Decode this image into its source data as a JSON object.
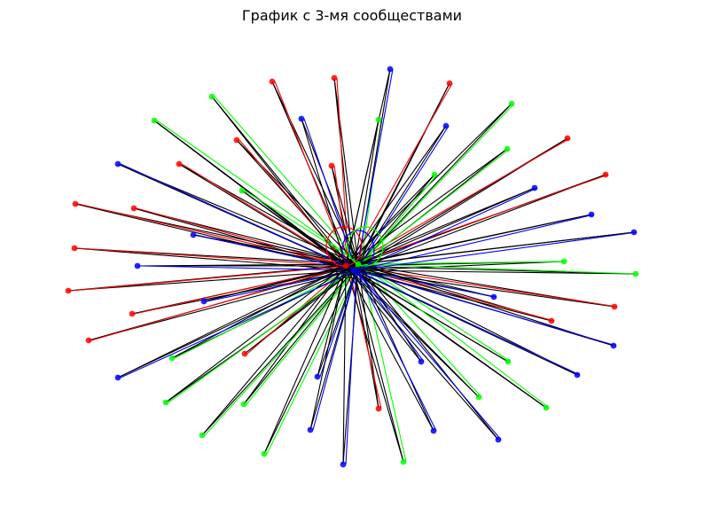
{
  "title": "График с 3-мя сообществами",
  "colors": {
    "red": "#ff0000",
    "green": "#00ff00",
    "blue": "#0000ff",
    "black_edge": "#000000"
  },
  "graph": {
    "type": "network",
    "communities": 3,
    "hub_nodes": [
      "red",
      "green",
      "blue"
    ],
    "peripheral_nodes": [
      {
        "community": "red"
      },
      {
        "community": "red"
      },
      {
        "community": "red"
      },
      {
        "community": "red"
      },
      {
        "community": "red"
      },
      {
        "community": "red"
      },
      {
        "community": "red"
      },
      {
        "community": "red"
      },
      {
        "community": "red"
      },
      {
        "community": "red"
      },
      {
        "community": "red"
      },
      {
        "community": "red"
      },
      {
        "community": "red"
      },
      {
        "community": "red"
      },
      {
        "community": "red"
      },
      {
        "community": "red"
      },
      {
        "community": "red"
      },
      {
        "community": "red"
      },
      {
        "community": "green"
      },
      {
        "community": "green"
      },
      {
        "community": "green"
      },
      {
        "community": "green"
      },
      {
        "community": "green"
      },
      {
        "community": "green"
      },
      {
        "community": "green"
      },
      {
        "community": "green"
      },
      {
        "community": "green"
      },
      {
        "community": "green"
      },
      {
        "community": "green"
      },
      {
        "community": "green"
      },
      {
        "community": "green"
      },
      {
        "community": "green"
      },
      {
        "community": "green"
      },
      {
        "community": "green"
      },
      {
        "community": "green"
      },
      {
        "community": "green"
      },
      {
        "community": "blue"
      },
      {
        "community": "blue"
      },
      {
        "community": "blue"
      },
      {
        "community": "blue"
      },
      {
        "community": "blue"
      },
      {
        "community": "blue"
      },
      {
        "community": "blue"
      },
      {
        "community": "blue"
      },
      {
        "community": "blue"
      },
      {
        "community": "blue"
      },
      {
        "community": "blue"
      },
      {
        "community": "blue"
      },
      {
        "community": "blue"
      },
      {
        "community": "blue"
      },
      {
        "community": "blue"
      },
      {
        "community": "blue"
      },
      {
        "community": "blue"
      },
      {
        "community": "blue"
      },
      {
        "community": "blue"
      },
      {
        "community": "blue"
      }
    ]
  }
}
